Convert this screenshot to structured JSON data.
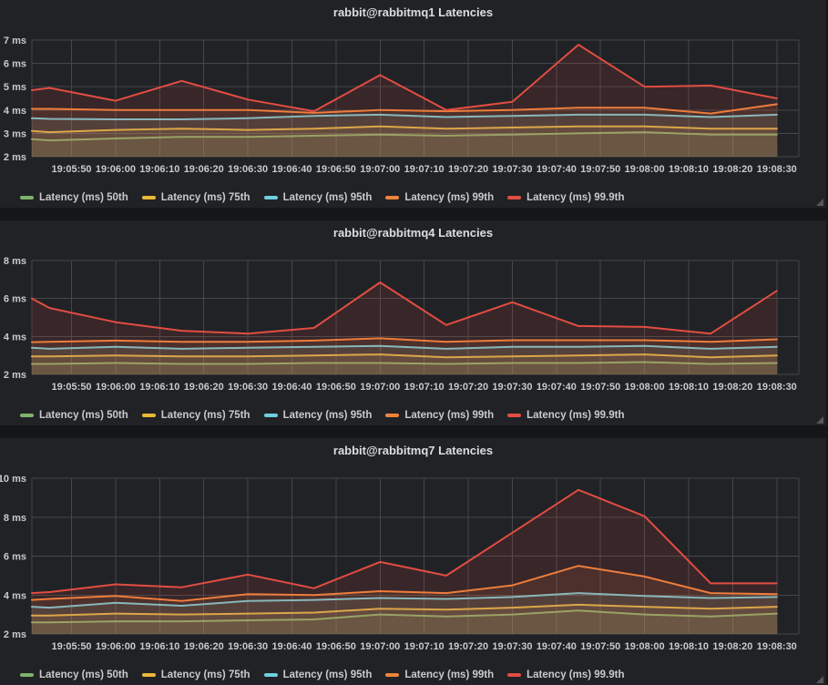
{
  "theme": {
    "page_bg": "#151619",
    "panel_bg": "#212226",
    "grid_color": "#45474b",
    "tick_color": "#c9cacc",
    "title_color": "#dcdde0",
    "fill_opacity": 0.12,
    "line_width": 2
  },
  "axis": {
    "start_time": "19:05:41",
    "window_seconds": [
      0,
      174
    ],
    "tick_seconds": [
      9,
      19,
      29,
      39,
      49,
      59,
      69,
      79,
      89,
      99,
      109,
      119,
      129,
      139,
      149,
      159,
      169
    ],
    "tick_labels": [
      "19:05:50",
      "19:06:00",
      "19:06:10",
      "19:06:20",
      "19:06:30",
      "19:06:40",
      "19:06:50",
      "19:07:00",
      "19:07:10",
      "19:07:20",
      "19:07:30",
      "19:07:40",
      "19:07:50",
      "19:08:00",
      "19:08:10",
      "19:08:20",
      "19:08:30"
    ],
    "point_seconds": [
      0,
      4,
      19,
      34,
      49,
      64,
      79,
      94,
      109,
      124,
      139,
      154,
      169
    ]
  },
  "chart_data": [
    {
      "type": "area",
      "title": "rabbit@rabbitmq1 Latencies",
      "y_unit": "ms",
      "ylim": [
        2,
        7
      ],
      "y_ticks": [
        2,
        3,
        4,
        5,
        6,
        7
      ],
      "grid": true,
      "legend_position": "bottom",
      "x_times": [
        "19:05:41",
        "19:05:45",
        "19:06:00",
        "19:06:15",
        "19:06:30",
        "19:06:45",
        "19:07:00",
        "19:07:15",
        "19:07:30",
        "19:07:45",
        "19:08:00",
        "19:08:15",
        "19:08:30"
      ],
      "series": [
        {
          "name": "Latency (ms) 50th",
          "color": "#7EB26D",
          "values": [
            2.75,
            2.7,
            2.78,
            2.85,
            2.85,
            2.9,
            2.95,
            2.9,
            2.95,
            3.0,
            3.05,
            2.95,
            2.95
          ]
        },
        {
          "name": "Latency (ms) 75th",
          "color": "#EAB839",
          "values": [
            3.1,
            3.05,
            3.15,
            3.2,
            3.15,
            3.2,
            3.3,
            3.2,
            3.25,
            3.3,
            3.3,
            3.2,
            3.2
          ]
        },
        {
          "name": "Latency (ms) 95th",
          "color": "#6ED0E0",
          "values": [
            3.65,
            3.62,
            3.6,
            3.6,
            3.65,
            3.75,
            3.8,
            3.7,
            3.75,
            3.8,
            3.8,
            3.7,
            3.8
          ]
        },
        {
          "name": "Latency (ms) 99th",
          "color": "#EF843C",
          "values": [
            4.05,
            4.05,
            4.0,
            4.0,
            4.0,
            3.88,
            4.0,
            3.95,
            4.0,
            4.1,
            4.1,
            3.85,
            4.25
          ]
        },
        {
          "name": "Latency (ms) 99.9th",
          "color": "#E24D42",
          "values": [
            4.85,
            4.95,
            4.4,
            5.25,
            4.45,
            3.95,
            5.5,
            4.0,
            4.35,
            6.8,
            5.0,
            5.05,
            4.5
          ]
        }
      ]
    },
    {
      "type": "area",
      "title": "rabbit@rabbitmq4 Latencies",
      "y_unit": "ms",
      "ylim": [
        2,
        8
      ],
      "y_ticks": [
        2,
        4,
        6,
        8
      ],
      "grid": true,
      "legend_position": "bottom",
      "x_times": [
        "19:05:41",
        "19:05:45",
        "19:06:00",
        "19:06:15",
        "19:06:30",
        "19:06:45",
        "19:07:00",
        "19:07:15",
        "19:07:30",
        "19:07:45",
        "19:08:00",
        "19:08:15",
        "19:08:30"
      ],
      "series": [
        {
          "name": "Latency (ms) 50th",
          "color": "#7EB26D",
          "values": [
            2.55,
            2.55,
            2.6,
            2.55,
            2.55,
            2.6,
            2.6,
            2.55,
            2.6,
            2.6,
            2.65,
            2.55,
            2.6
          ]
        },
        {
          "name": "Latency (ms) 75th",
          "color": "#EAB839",
          "values": [
            2.95,
            2.95,
            3.0,
            2.95,
            2.95,
            3.0,
            3.05,
            2.9,
            2.95,
            3.0,
            3.05,
            2.9,
            3.0
          ]
        },
        {
          "name": "Latency (ms) 95th",
          "color": "#6ED0E0",
          "values": [
            3.4,
            3.35,
            3.45,
            3.35,
            3.4,
            3.45,
            3.5,
            3.35,
            3.45,
            3.45,
            3.5,
            3.35,
            3.45
          ]
        },
        {
          "name": "Latency (ms) 99th",
          "color": "#EF843C",
          "values": [
            3.7,
            3.72,
            3.78,
            3.72,
            3.72,
            3.78,
            3.9,
            3.72,
            3.8,
            3.8,
            3.8,
            3.72,
            3.85
          ]
        },
        {
          "name": "Latency (ms) 99.9th",
          "color": "#E24D42",
          "values": [
            6.0,
            5.5,
            4.75,
            4.3,
            4.15,
            4.45,
            6.85,
            4.6,
            5.8,
            4.55,
            4.5,
            4.15,
            6.4
          ]
        }
      ]
    },
    {
      "type": "area",
      "title": "rabbit@rabbitmq7 Latencies",
      "y_unit": "ms",
      "ylim": [
        2,
        10
      ],
      "y_ticks": [
        2,
        4,
        6,
        8,
        10
      ],
      "grid": true,
      "legend_position": "bottom",
      "x_times": [
        "19:05:41",
        "19:05:45",
        "19:06:00",
        "19:06:15",
        "19:06:30",
        "19:06:45",
        "19:07:00",
        "19:07:15",
        "19:07:30",
        "19:07:45",
        "19:08:00",
        "19:08:15",
        "19:08:30"
      ],
      "series": [
        {
          "name": "Latency (ms) 50th",
          "color": "#7EB26D",
          "values": [
            2.6,
            2.6,
            2.65,
            2.65,
            2.7,
            2.75,
            3.0,
            2.9,
            3.0,
            3.2,
            3.0,
            2.9,
            3.05
          ]
        },
        {
          "name": "Latency (ms) 75th",
          "color": "#EAB839",
          "values": [
            2.95,
            2.95,
            3.05,
            3.0,
            3.05,
            3.1,
            3.3,
            3.25,
            3.35,
            3.5,
            3.4,
            3.3,
            3.4
          ]
        },
        {
          "name": "Latency (ms) 95th",
          "color": "#6ED0E0",
          "values": [
            3.4,
            3.35,
            3.6,
            3.45,
            3.7,
            3.75,
            3.85,
            3.8,
            3.9,
            4.1,
            3.95,
            3.85,
            3.9
          ]
        },
        {
          "name": "Latency (ms) 99th",
          "color": "#EF843C",
          "values": [
            3.75,
            3.8,
            3.95,
            3.7,
            4.05,
            4.0,
            4.2,
            4.1,
            4.5,
            5.5,
            4.95,
            4.1,
            4.05
          ]
        },
        {
          "name": "Latency (ms) 99.9th",
          "color": "#E24D42",
          "values": [
            4.1,
            4.15,
            4.55,
            4.4,
            5.05,
            4.35,
            5.7,
            5.0,
            7.2,
            9.4,
            8.05,
            4.6,
            4.6
          ]
        }
      ]
    }
  ]
}
